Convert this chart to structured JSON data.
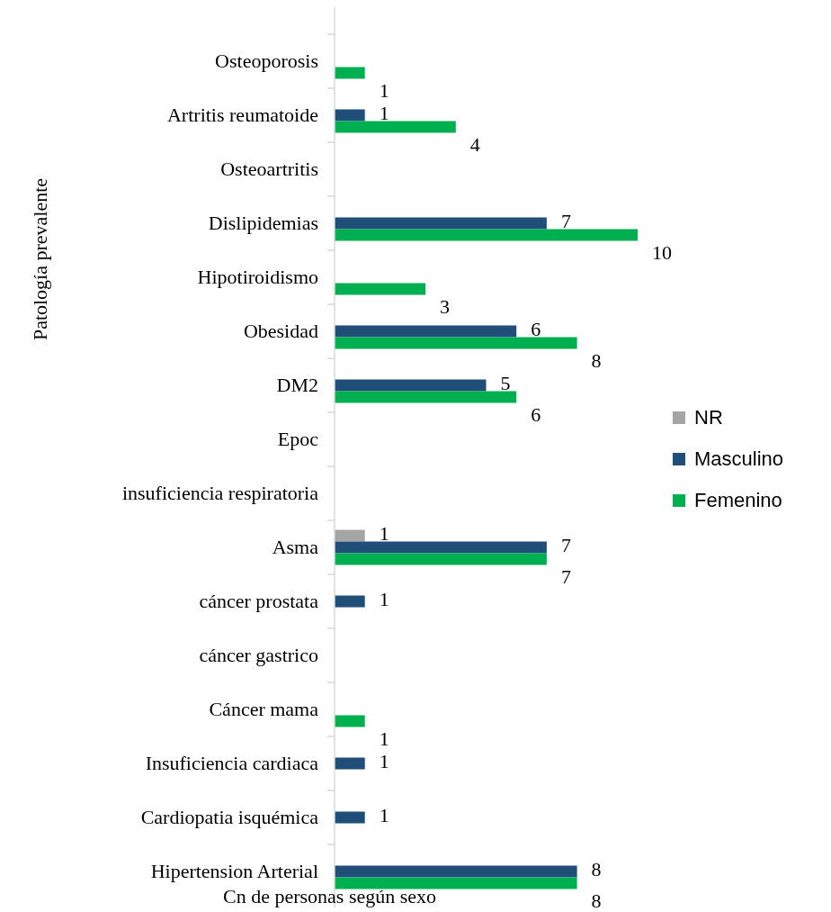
{
  "chart_data": {
    "type": "bar",
    "orientation": "horizontal",
    "xlabel": "Cn de personas según sexo",
    "ylabel": "Patología  prevalente",
    "categories": [
      "Osteoporosis",
      "Artritis reumatoide",
      "Osteoartritis",
      "Dislipidemias",
      "Hipotiroidismo",
      "Obesidad",
      "DM2",
      "Epoc",
      "insuficiencia respiratoria",
      "Asma",
      "cáncer prostata",
      "cáncer gastrico",
      "Cáncer  mama",
      "Insuficiencia cardiaca",
      "Cardiopatia isquémica",
      "Hipertension Arterial"
    ],
    "series": [
      {
        "name": "NR",
        "color": "#a5a5a5",
        "values": [
          null,
          null,
          null,
          null,
          null,
          null,
          null,
          null,
          null,
          1,
          null,
          null,
          null,
          null,
          null,
          null
        ]
      },
      {
        "name": "Masculino",
        "color": "#1f4e79",
        "values": [
          null,
          1,
          null,
          7,
          null,
          6,
          5,
          null,
          null,
          7,
          1,
          null,
          null,
          1,
          1,
          8
        ]
      },
      {
        "name": "Femenino",
        "color": "#00b050",
        "values": [
          1,
          4,
          null,
          10,
          3,
          8,
          6,
          null,
          null,
          7,
          null,
          null,
          1,
          null,
          null,
          8
        ]
      }
    ],
    "data_labels": true,
    "legend": "right",
    "grid": false,
    "tick_labels": "y"
  }
}
